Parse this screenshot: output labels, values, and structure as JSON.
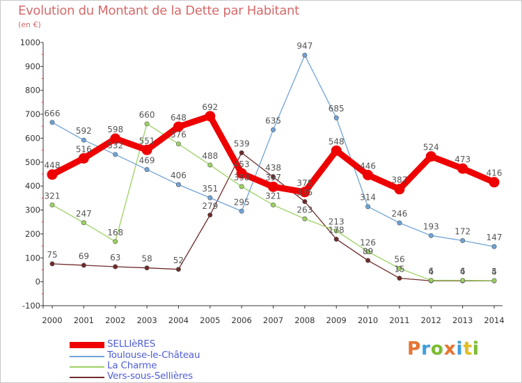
{
  "title": "Evolution du Montant de la Dette par Habitant",
  "subtitle": "(en €)",
  "logo": {
    "text": "Proxiti",
    "colors": [
      "#e8732e",
      "#3aa0dd",
      "#7abd2e",
      "#e8732e",
      "#3aa0dd",
      "#e0c020",
      "#7abd2e"
    ]
  },
  "chart_data": {
    "type": "line",
    "x": [
      2000,
      2001,
      2002,
      2003,
      2004,
      2005,
      2006,
      2007,
      2008,
      2009,
      2010,
      2011,
      2012,
      2013,
      2014
    ],
    "ylim": [
      -100,
      1000
    ],
    "yticks": [
      -100,
      0,
      100,
      200,
      300,
      400,
      500,
      600,
      700,
      800,
      900,
      1000
    ],
    "grid": false,
    "legend_position": "bottom-left",
    "series": [
      {
        "name": "SELLIèRES",
        "color": "#ee0000",
        "values": [
          448,
          516,
          598,
          551,
          648,
          692,
          453,
          397,
          375,
          548,
          446,
          387,
          524,
          473,
          416
        ],
        "labels": [
          "448",
          "516",
          "598",
          "551",
          "648",
          "692",
          "453",
          "397",
          "375",
          "548",
          "446",
          "387",
          "524",
          "473",
          "416"
        ]
      },
      {
        "name": "Toulouse-le-Château",
        "color": "#6fa3d6",
        "values": [
          666,
          592,
          532,
          469,
          406,
          351,
          295,
          635,
          947,
          685,
          314,
          246,
          193,
          172,
          147
        ],
        "labels": [
          "666",
          "592",
          "532",
          "469",
          "406",
          "351",
          "295",
          "635",
          "947",
          "685",
          "314",
          "246",
          "193",
          "172",
          "147"
        ]
      },
      {
        "name": "La Charme",
        "color": "#9cd162",
        "values": [
          321,
          247,
          168,
          660,
          576,
          488,
          398,
          321,
          263,
          213,
          126,
          56,
          6,
          6,
          5
        ],
        "labels": [
          "321",
          "247",
          "168",
          "660",
          "576",
          "488",
          "398",
          "321",
          "263",
          "213",
          "126",
          "56",
          "6",
          "6",
          "5"
        ]
      },
      {
        "name": "Vers-sous-Sellières",
        "color": "#6e2a2a",
        "values": [
          75,
          69,
          63,
          58,
          52,
          279,
          539,
          438,
          335,
          178,
          89,
          15,
          4,
          4,
          4
        ],
        "labels": [
          "75",
          "69",
          "63",
          "58",
          "52",
          "279",
          "539",
          "438",
          "335",
          "178",
          "89",
          "15",
          "4",
          "4",
          "4"
        ]
      }
    ]
  }
}
